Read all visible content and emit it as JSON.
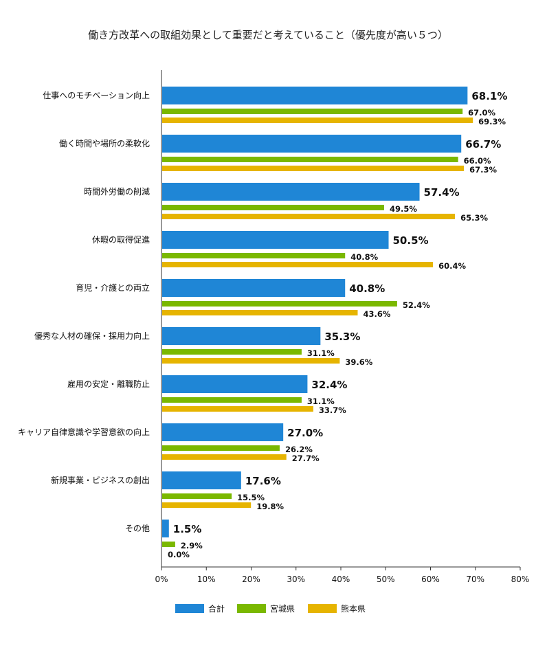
{
  "chart_data": {
    "type": "bar",
    "orientation": "horizontal",
    "title": "働き方改革への取組効果として重要だと考えていること（優先度が高い５つ）",
    "categories": [
      "仕事へのモチベーション向上",
      "働く時間や場所の柔軟化",
      "時間外労働の削減",
      "休暇の取得促進",
      "育児・介護との両立",
      "優秀な人材の確保・採用力向上",
      "雇用の安定・離職防止",
      "キャリア自律意識や学習意欲の向上",
      "新規事業・ビジネスの創出",
      "その他"
    ],
    "series": [
      {
        "name": "合計",
        "color": "#1f86d6",
        "values": [
          68.1,
          66.7,
          57.4,
          50.5,
          40.8,
          35.3,
          32.4,
          27.0,
          17.6,
          1.5
        ]
      },
      {
        "name": "宮城県",
        "color": "#7ab800",
        "values": [
          67.0,
          66.0,
          49.5,
          40.8,
          52.4,
          31.1,
          31.1,
          26.2,
          15.5,
          2.9
        ]
      },
      {
        "name": "熊本県",
        "color": "#e6b400",
        "values": [
          69.3,
          67.3,
          65.3,
          60.4,
          43.6,
          39.6,
          33.7,
          27.7,
          19.8,
          0.0
        ]
      }
    ],
    "xlim": [
      0,
      80
    ],
    "xticks": [
      "0%",
      "10%",
      "20%",
      "30%",
      "40%",
      "50%",
      "60%",
      "70%",
      "80%"
    ],
    "value_suffix": "%",
    "grid": false,
    "legend_position": "bottom"
  }
}
